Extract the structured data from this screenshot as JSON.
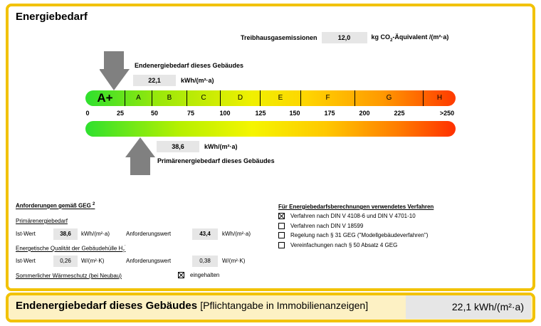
{
  "title": "Energiebedarf",
  "emissions": {
    "label": "Treibhausgasemissionen",
    "value": "12,0",
    "unit_pre": "kg CO",
    "unit_sub": "2",
    "unit_post": "-Äquivalent /(m²·a)"
  },
  "end_energy": {
    "label": "Endenergiebedarf dieses Gebäudes",
    "value": "22,1",
    "unit": "kWh/(m²·a)",
    "scale_value": 22.1
  },
  "primary_energy": {
    "label": "Primärenergiebedarf dieses Gebäudes",
    "value": "38,6",
    "unit": "kWh/(m²·a)",
    "scale_value": 38.6
  },
  "classes": [
    "A+",
    "A",
    "B",
    "C",
    "D",
    "E",
    "F",
    "G",
    "H"
  ],
  "ticks": [
    "0",
    "25",
    "50",
    "75",
    "100",
    "125",
    "150",
    "175",
    "200",
    "225",
    ">250"
  ],
  "requirements": {
    "heading": "Anforderungen gemäß GEG",
    "heading_sup": "2",
    "primary_heading": "Primärenergiebedarf",
    "ist_label": "Ist-Wert",
    "req_label": "Anforderungswert",
    "primary_ist": "38,6",
    "primary_req": "43,4",
    "primary_unit": "kWh/(m²·a)",
    "envelope_heading": "Energetische Qualität der Gebäudehülle H",
    "envelope_sub": "T",
    "envelope_sup": "'",
    "envelope_ist": "0,26",
    "envelope_req": "0,38",
    "envelope_unit": "W/(m²·K)",
    "summer_label": "Sommerlicher Wärmeschutz (bei Neubau)",
    "summer_status": "eingehalten",
    "summer_checked": true
  },
  "methods": {
    "heading": "Für Energiebedarfsberechnungen verwendetes Verfahren",
    "items": [
      {
        "label": "Verfahren nach DIN V 4108-6 und DIN V 4701-10",
        "checked": true
      },
      {
        "label": "Verfahren nach DIN V 18599",
        "checked": false
      },
      {
        "label": "Regelung nach § 31 GEG (\"Modellgebäudeverfahren\")",
        "checked": false
      },
      {
        "label": "Vereinfachungen nach § 50 Absatz 4 GEG",
        "checked": false
      }
    ]
  },
  "footer": {
    "label": "Endenergiebedarf dieses Gebäudes",
    "note": "[Pflichtangabe in Immobilienanzeigen]",
    "value": "22,1 kWh/(m²·a)"
  },
  "colors": {
    "frame": "#f2c200",
    "arrow": "#808080",
    "value_bg": "#e6e6e6"
  }
}
